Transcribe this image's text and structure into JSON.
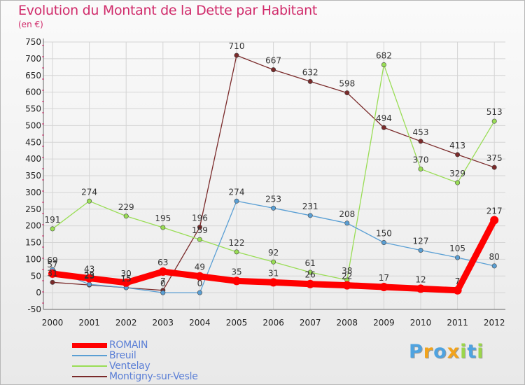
{
  "chart_data": {
    "type": "line",
    "title": "Evolution du Montant de la Dette par Habitant",
    "subtitle": "(en €)",
    "x": [
      "2000",
      "2001",
      "2002",
      "2003",
      "2004",
      "2005",
      "2006",
      "2007",
      "2008",
      "2009",
      "2010",
      "2011",
      "2012"
    ],
    "yticks": [
      750,
      700,
      650,
      600,
      550,
      500,
      450,
      400,
      350,
      300,
      250,
      200,
      150,
      100,
      50,
      0,
      -50
    ],
    "ylim": [
      -50,
      750
    ],
    "grid": true,
    "legend_position": "bottom-left",
    "series": [
      {
        "name": "ROMAIN",
        "color": "#ff0000",
        "values": [
          57,
          43,
          30,
          63,
          49,
          35,
          31,
          26,
          22,
          17,
          12,
          7,
          217
        ],
        "labels": [
          "57",
          "43",
          "30",
          "63",
          "49",
          "35",
          "31",
          "26",
          "22",
          "17",
          "12",
          "7",
          "217"
        ]
      },
      {
        "name": "Breuil",
        "color": "#5a9fd4",
        "values": [
          69,
          25,
          15,
          0,
          0,
          274,
          253,
          231,
          208,
          150,
          127,
          105,
          80
        ],
        "labels": [
          "69",
          "25",
          "15",
          "0",
          "0",
          "274",
          "253",
          "231",
          "208",
          "150",
          "127",
          "105",
          "80"
        ]
      },
      {
        "name": "Ventelay",
        "color": "#99dd55",
        "values": [
          191,
          274,
          229,
          195,
          159,
          122,
          92,
          61,
          38,
          682,
          370,
          329,
          513
        ],
        "labels": [
          "191",
          "274",
          "229",
          "195",
          "159",
          "122",
          "92",
          "61",
          "38",
          "682",
          "370",
          "329",
          "513"
        ]
      },
      {
        "name": "Montigny-sur-Vesle",
        "color": "#7a2a2a",
        "values": [
          31,
          23,
          15,
          7,
          196,
          710,
          667,
          632,
          598,
          494,
          453,
          413,
          375
        ],
        "labels": [
          "31",
          "23",
          "15",
          "7",
          "196",
          "710",
          "667",
          "632",
          "598",
          "494",
          "453",
          "413",
          "375"
        ]
      }
    ]
  },
  "logo": {
    "letters": [
      {
        "ch": "P",
        "color": "#4fa3e0"
      },
      {
        "ch": "r",
        "color": "#f2a31c"
      },
      {
        "ch": "o",
        "color": "#4fa3e0"
      },
      {
        "ch": "x",
        "color": "#f2a31c"
      },
      {
        "ch": "i",
        "color": "#9bd64a"
      },
      {
        "ch": "t",
        "color": "#4fa3e0"
      },
      {
        "ch": "i",
        "color": "#9bd64a"
      }
    ]
  }
}
